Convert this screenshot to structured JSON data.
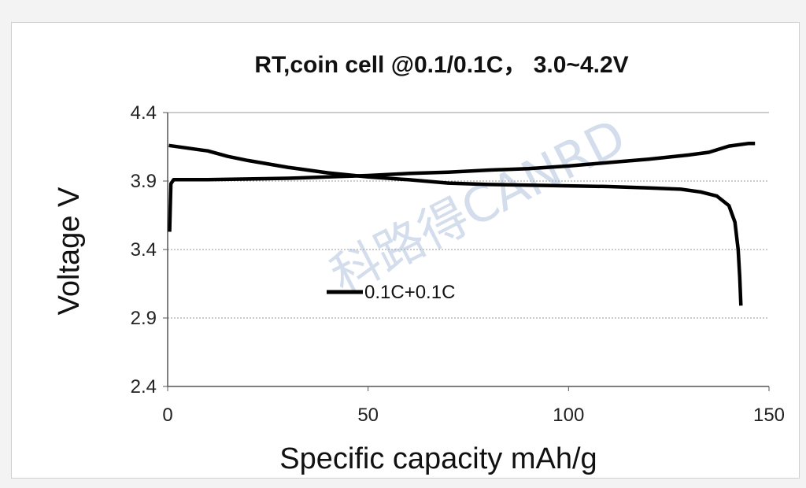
{
  "chart_data": {
    "type": "line",
    "title": "RT,coin cell @0.1/0.1C，  3.0~4.2V",
    "xlabel": "Specific capacity mAh/g",
    "ylabel": "Voltage V",
    "xlim": [
      0,
      150
    ],
    "ylim": [
      2.4,
      4.4
    ],
    "xticks": [
      "0",
      "50",
      "100",
      "150"
    ],
    "yticks": [
      "2.4",
      "2.9",
      "3.4",
      "3.9",
      "4.4"
    ],
    "grid": "horizontal",
    "legend": {
      "position": "center-left",
      "entries": [
        "0.1C+0.1C"
      ]
    },
    "series_color": "#000000",
    "series": [
      {
        "name": "0.1C+0.1C",
        "segments": [
          [
            [
              0.5,
              3.53
            ],
            [
              0.8,
              3.88
            ],
            [
              1.5,
              3.91
            ],
            [
              10,
              3.91
            ],
            [
              20,
              3.915
            ],
            [
              30,
              3.92
            ],
            [
              40,
              3.93
            ],
            [
              50,
              3.94
            ],
            [
              60,
              3.955
            ],
            [
              70,
              3.965
            ],
            [
              80,
              3.98
            ],
            [
              90,
              3.99
            ],
            [
              100,
              4.01
            ],
            [
              110,
              4.035
            ],
            [
              120,
              4.06
            ],
            [
              130,
              4.09
            ],
            [
              135,
              4.11
            ],
            [
              140,
              4.155
            ],
            [
              145,
              4.175
            ],
            [
              146.5,
              4.175
            ]
          ],
          [
            [
              0.3,
              4.16
            ],
            [
              5,
              4.14
            ],
            [
              10,
              4.12
            ],
            [
              15,
              4.08
            ],
            [
              20,
              4.05
            ],
            [
              30,
              4.0
            ],
            [
              40,
              3.96
            ],
            [
              50,
              3.93
            ],
            [
              60,
              3.91
            ],
            [
              70,
              3.885
            ],
            [
              80,
              3.875
            ],
            [
              90,
              3.87
            ],
            [
              100,
              3.865
            ],
            [
              110,
              3.86
            ],
            [
              120,
              3.85
            ],
            [
              128,
              3.84
            ],
            [
              133,
              3.82
            ],
            [
              137,
              3.79
            ],
            [
              140,
              3.72
            ],
            [
              141.5,
              3.6
            ],
            [
              142.3,
              3.4
            ],
            [
              142.7,
              3.2
            ],
            [
              143,
              2.99
            ]
          ]
        ]
      }
    ]
  },
  "watermark": "科路得CANRD"
}
